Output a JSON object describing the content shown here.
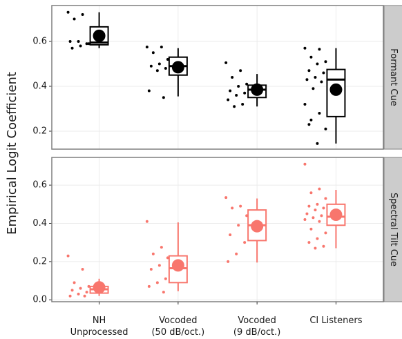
{
  "chart_data": [
    {
      "type": "box",
      "title": "Formant Cue",
      "ylabel": "Empirical Logit Coefficient",
      "color": "#000000",
      "ylim": [
        0.12,
        0.76
      ],
      "yticks": [
        0.2,
        0.4,
        0.6
      ],
      "grid": true,
      "boxes": [
        {
          "low": 0.57,
          "q1": 0.585,
          "median": 0.595,
          "q3": 0.665,
          "high": 0.73,
          "mean": 0.625,
          "points": [
            0.73,
            0.72,
            0.7,
            0.59,
            0.58,
            0.57,
            0.59,
            0.6,
            0.6
          ]
        },
        {
          "low": 0.355,
          "q1": 0.45,
          "median": 0.49,
          "q3": 0.53,
          "high": 0.57,
          "mean": 0.485,
          "points": [
            0.575,
            0.575,
            0.55,
            0.52,
            0.5,
            0.49,
            0.48,
            0.47,
            0.38,
            0.35
          ]
        },
        {
          "low": 0.31,
          "q1": 0.35,
          "median": 0.385,
          "q3": 0.405,
          "high": 0.455,
          "mean": 0.385,
          "points": [
            0.505,
            0.47,
            0.44,
            0.41,
            0.4,
            0.38,
            0.37,
            0.36,
            0.34,
            0.32,
            0.31
          ]
        },
        {
          "low": 0.145,
          "q1": 0.265,
          "median": 0.43,
          "q3": 0.475,
          "high": 0.57,
          "mean": 0.385,
          "points": [
            0.57,
            0.565,
            0.53,
            0.51,
            0.5,
            0.47,
            0.46,
            0.44,
            0.43,
            0.42,
            0.39,
            0.32,
            0.28,
            0.25,
            0.21,
            0.145,
            0.23
          ]
        }
      ]
    },
    {
      "type": "box",
      "title": "Spectral Tilt Cue",
      "color": "#F8766D",
      "categories": [
        "NH\nUnprocessed",
        "Vocoded\n(50 dB/oct.)",
        "Vocoded\n(9 dB/oct.)",
        "CI Listeners"
      ],
      "ylim": [
        -0.01,
        0.745
      ],
      "yticks": [
        {
          "value": 0,
          "label": "0.0"
        },
        0.2,
        0.4,
        0.6
      ],
      "grid": true,
      "boxes": [
        {
          "low": 0.02,
          "q1": 0.035,
          "median": 0.055,
          "q3": 0.07,
          "high": 0.11,
          "mean": 0.065,
          "points": [
            0.23,
            0.16,
            0.09,
            0.07,
            0.06,
            0.05,
            0.04,
            0.03,
            0.02,
            0.02
          ]
        },
        {
          "low": 0.045,
          "q1": 0.09,
          "median": 0.165,
          "q3": 0.23,
          "high": 0.405,
          "mean": 0.18,
          "points": [
            0.41,
            0.275,
            0.24,
            0.22,
            0.18,
            0.16,
            0.11,
            0.09,
            0.07,
            0.04
          ]
        },
        {
          "low": 0.195,
          "q1": 0.31,
          "median": 0.39,
          "q3": 0.47,
          "high": 0.53,
          "mean": 0.385,
          "points": [
            0.535,
            0.49,
            0.48,
            0.44,
            0.39,
            0.34,
            0.3,
            0.24,
            0.2
          ]
        },
        {
          "low": 0.27,
          "q1": 0.39,
          "median": 0.435,
          "q3": 0.5,
          "high": 0.575,
          "mean": 0.445,
          "points": [
            0.71,
            0.58,
            0.56,
            0.53,
            0.5,
            0.49,
            0.48,
            0.47,
            0.45,
            0.44,
            0.43,
            0.42,
            0.41,
            0.37,
            0.35,
            0.32,
            0.3,
            0.28,
            0.27
          ]
        }
      ]
    }
  ]
}
